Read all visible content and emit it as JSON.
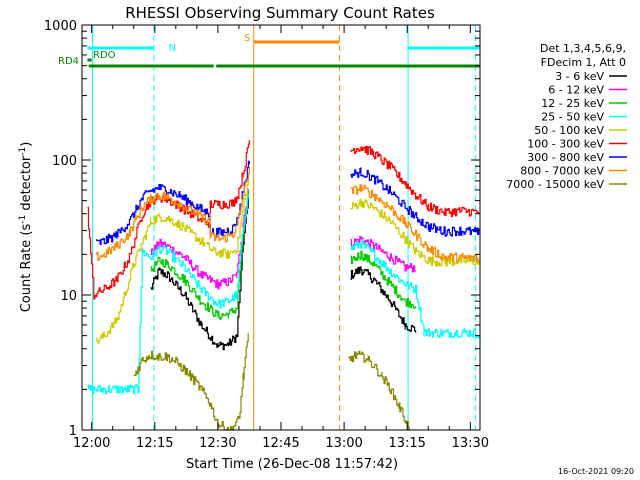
{
  "chart_data": {
    "type": "line",
    "title": "RHESSI Observing Summary Count Rates",
    "xlabel": "Start Time (26-Dec-08 11:57:42)",
    "ylabel_main": "Count Rate (s",
    "ylabel_sup1": "-1",
    "ylabel_mid": " detector",
    "ylabel_sup2": "-1",
    "ylabel_end": ")",
    "timestamp": "16-Oct-2021 09:20",
    "x_range_min": [
      -2.3,
      92.3
    ],
    "y_range": [
      1,
      1000
    ],
    "y_scale": "log",
    "x_ticks": [
      {
        "min": 0,
        "label": "12:00"
      },
      {
        "min": 15,
        "label": "12:15"
      },
      {
        "min": 30,
        "label": "12:30"
      },
      {
        "min": 45,
        "label": "12:45"
      },
      {
        "min": 60,
        "label": "13:00"
      },
      {
        "min": 75,
        "label": "13:15"
      },
      {
        "min": 90,
        "label": "13:30"
      }
    ],
    "y_ticks": [
      {
        "value": 1,
        "label": "1"
      },
      {
        "value": 10,
        "label": "10"
      },
      {
        "value": 100,
        "label": "100"
      },
      {
        "value": 1000,
        "label": "1000"
      }
    ],
    "legend_header": [
      "Det 1,3,4,5,6,9,",
      "FDecim 1, Att 0"
    ],
    "series": [
      {
        "name": "3 - 6 keV",
        "color": "#000000",
        "points": [
          [
            14.0,
            11
          ],
          [
            16.0,
            15
          ],
          [
            18.0,
            14
          ],
          [
            22.0,
            10
          ],
          [
            26.0,
            6
          ],
          [
            30.0,
            4.2
          ],
          [
            32.5,
            4.3
          ],
          [
            34.5,
            5
          ],
          [
            36.0,
            25
          ],
          [
            37.2,
            50
          ],
          [
            61.5,
            14
          ],
          [
            64.0,
            15.5
          ],
          [
            67.0,
            13
          ],
          [
            71.0,
            9
          ],
          [
            74.5,
            6
          ],
          [
            77.0,
            5.5
          ]
        ]
      },
      {
        "name": "6 - 12 keV",
        "color": "#ff00ff",
        "points": [
          [
            14.0,
            20
          ],
          [
            16.0,
            24
          ],
          [
            18.0,
            23
          ],
          [
            22.0,
            19
          ],
          [
            26.0,
            14
          ],
          [
            30.0,
            12
          ],
          [
            32.5,
            12.5
          ],
          [
            34.5,
            14
          ],
          [
            36.0,
            35
          ],
          [
            37.2,
            60
          ],
          [
            61.5,
            24
          ],
          [
            64.0,
            26
          ],
          [
            67.0,
            23
          ],
          [
            71.0,
            19
          ],
          [
            74.5,
            16
          ],
          [
            77.0,
            16
          ]
        ]
      },
      {
        "name": "12 - 25 keV",
        "color": "#00cc00",
        "points": [
          [
            14.0,
            15
          ],
          [
            16.0,
            18
          ],
          [
            18.0,
            17
          ],
          [
            22.0,
            13
          ],
          [
            26.0,
            9
          ],
          [
            30.0,
            7
          ],
          [
            32.5,
            7.2
          ],
          [
            34.5,
            8
          ],
          [
            36.0,
            30
          ],
          [
            37.2,
            55
          ],
          [
            61.5,
            18
          ],
          [
            64.0,
            20
          ],
          [
            67.0,
            17
          ],
          [
            71.0,
            12
          ],
          [
            74.5,
            9
          ],
          [
            77.0,
            8.5
          ]
        ]
      },
      {
        "name": "25 - 50 keV",
        "color": "#00ffff",
        "points": [
          [
            -1.0,
            2
          ],
          [
            3.0,
            2
          ],
          [
            8.0,
            2
          ],
          [
            11.0,
            2
          ],
          [
            12.0,
            21
          ],
          [
            14.0,
            19
          ],
          [
            16.0,
            22
          ],
          [
            18.0,
            21
          ],
          [
            22.0,
            16
          ],
          [
            26.0,
            11
          ],
          [
            30.0,
            8.5
          ],
          [
            32.5,
            9
          ],
          [
            34.5,
            10
          ],
          [
            36.0,
            32
          ],
          [
            37.2,
            58
          ],
          [
            61.5,
            22
          ],
          [
            64.0,
            24
          ],
          [
            67.0,
            20
          ],
          [
            71.0,
            15
          ],
          [
            74.5,
            12
          ],
          [
            77.0,
            11
          ],
          [
            79.0,
            5.3
          ],
          [
            84.0,
            5.2
          ],
          [
            88.0,
            5.3
          ],
          [
            92.0,
            5.2
          ]
        ]
      },
      {
        "name": "50 - 100 keV",
        "color": "#cccc00",
        "points": [
          [
            1.0,
            4.5
          ],
          [
            3.0,
            5
          ],
          [
            6.0,
            6.5
          ],
          [
            10.0,
            17
          ],
          [
            14.0,
            35
          ],
          [
            16.0,
            38
          ],
          [
            18.0,
            37
          ],
          [
            21.0,
            33
          ],
          [
            26.0,
            25
          ],
          [
            29.0,
            21
          ],
          [
            32.5,
            20
          ],
          [
            34.5,
            22
          ],
          [
            36.0,
            45
          ],
          [
            37.2,
            70
          ],
          [
            61.5,
            44
          ],
          [
            64.0,
            49
          ],
          [
            67.0,
            44
          ],
          [
            71.0,
            35
          ],
          [
            74.5,
            26
          ],
          [
            77.0,
            21
          ],
          [
            80.0,
            18
          ],
          [
            84.0,
            17.5
          ],
          [
            88.0,
            18
          ],
          [
            92.0,
            17.5
          ]
        ]
      },
      {
        "name": "100 - 300 keV",
        "color": "#ff0000",
        "points": [
          [
            -1.0,
            42
          ],
          [
            0.5,
            10
          ],
          [
            3.0,
            11
          ],
          [
            6.0,
            13
          ],
          [
            9.0,
            19
          ],
          [
            12.0,
            40
          ],
          [
            14.0,
            50
          ],
          [
            16.0,
            53
          ],
          [
            18.0,
            51
          ],
          [
            21.0,
            45
          ],
          [
            26.0,
            36
          ],
          [
            28.0,
            34
          ],
          [
            28.2,
            47
          ],
          [
            31.0,
            47
          ],
          [
            33.5,
            48
          ],
          [
            34.5,
            52
          ],
          [
            36.0,
            80
          ],
          [
            37.5,
            140
          ],
          [
            61.5,
            118
          ],
          [
            64.0,
            125
          ],
          [
            67.0,
            112
          ],
          [
            71.0,
            88
          ],
          [
            74.5,
            67
          ],
          [
            77.0,
            55
          ],
          [
            80.0,
            45
          ],
          [
            84.0,
            41
          ],
          [
            88.0,
            42
          ],
          [
            92.0,
            41
          ]
        ]
      },
      {
        "name": "300 - 800 keV",
        "color": "#0000ff",
        "points": [
          [
            1.0,
            24
          ],
          [
            3.0,
            25
          ],
          [
            6.0,
            28
          ],
          [
            9.0,
            35
          ],
          [
            12.0,
            52
          ],
          [
            14.0,
            59
          ],
          [
            16.0,
            62
          ],
          [
            18.0,
            60
          ],
          [
            21.0,
            54
          ],
          [
            26.0,
            43
          ],
          [
            28.0,
            40
          ],
          [
            28.2,
            29
          ],
          [
            31.0,
            29
          ],
          [
            33.5,
            31
          ],
          [
            34.5,
            35
          ],
          [
            36.0,
            60
          ],
          [
            37.5,
            100
          ],
          [
            61.5,
            77
          ],
          [
            64.0,
            82
          ],
          [
            67.0,
            73
          ],
          [
            71.0,
            58
          ],
          [
            74.5,
            45
          ],
          [
            77.0,
            38
          ],
          [
            80.0,
            32
          ],
          [
            84.0,
            29.5
          ],
          [
            88.0,
            30
          ],
          [
            92.0,
            29
          ]
        ]
      },
      {
        "name": "800 - 7000 keV",
        "color": "#ff8800",
        "points": [
          [
            1.0,
            19
          ],
          [
            3.0,
            20
          ],
          [
            6.0,
            23
          ],
          [
            9.0,
            29
          ],
          [
            12.0,
            45
          ],
          [
            14.0,
            52
          ],
          [
            16.0,
            55
          ],
          [
            18.0,
            53
          ],
          [
            21.0,
            47
          ],
          [
            26.0,
            38
          ],
          [
            28.0,
            35
          ],
          [
            28.2,
            27
          ],
          [
            31.0,
            26
          ],
          [
            33.5,
            28
          ],
          [
            34.5,
            32
          ],
          [
            36.0,
            55
          ],
          [
            37.5,
            90
          ],
          [
            61.5,
            58
          ],
          [
            64.0,
            62
          ],
          [
            67.0,
            55
          ],
          [
            71.0,
            44
          ],
          [
            74.5,
            34
          ],
          [
            77.0,
            28
          ],
          [
            80.0,
            22
          ],
          [
            84.0,
            19
          ],
          [
            88.0,
            19
          ],
          [
            92.0,
            18.5
          ]
        ]
      },
      {
        "name": "7000 - 15000 keV",
        "color": "#888800",
        "points": [
          [
            10.0,
            2.5
          ],
          [
            12.0,
            3.3
          ],
          [
            14.0,
            3.6
          ],
          [
            16.0,
            3.5
          ],
          [
            18.0,
            3.5
          ],
          [
            20.0,
            3.2
          ],
          [
            22.0,
            2.8
          ],
          [
            24.0,
            2.4
          ],
          [
            26.0,
            2.0
          ],
          [
            28.0,
            1.6
          ],
          [
            30.0,
            1.1
          ],
          [
            33.0,
            1.0
          ],
          [
            35.0,
            1.2
          ],
          [
            36.0,
            2.5
          ],
          [
            37.2,
            5
          ],
          [
            61.0,
            3.3
          ],
          [
            63.0,
            3.6
          ],
          [
            65.0,
            3.4
          ],
          [
            67.0,
            3.0
          ],
          [
            69.0,
            2.5
          ],
          [
            71.0,
            2.0
          ],
          [
            73.0,
            1.5
          ],
          [
            74.5,
            1.2
          ],
          [
            75.5,
            1.0
          ]
        ]
      }
    ],
    "markers": [
      {
        "label": "N",
        "color": "#00ffff",
        "text_min": 18.3,
        "segments": [
          [
            -1.0,
            14.8
          ],
          [
            75.2,
            92.3
          ]
        ]
      },
      {
        "label": "S",
        "color": "#ff8800",
        "text_min": 36.2,
        "segments": [
          [
            38.5,
            58.9
          ]
        ]
      }
    ],
    "mode_bars": [
      {
        "label": "RDO",
        "color": "#008800",
        "segments": [
          [
            -1.0,
            0.0
          ]
        ]
      },
      {
        "label": "RD4",
        "color": "#008800",
        "segments": [
          [
            -0.7,
            29.0
          ],
          [
            29.6,
            92.3
          ]
        ]
      }
    ],
    "vlines": [
      {
        "min": 0.2,
        "color": "#00ffff",
        "style": "solid"
      },
      {
        "min": 14.8,
        "color": "#00ffff",
        "style": "dashed"
      },
      {
        "min": 38.5,
        "color": "#ff8800",
        "style": "solid"
      },
      {
        "min": 58.9,
        "color": "#ff8800",
        "style": "dashed"
      },
      {
        "min": 75.2,
        "color": "#00ffff",
        "style": "solid"
      },
      {
        "min": 91.2,
        "color": "#00ffff",
        "style": "dashed"
      }
    ]
  }
}
